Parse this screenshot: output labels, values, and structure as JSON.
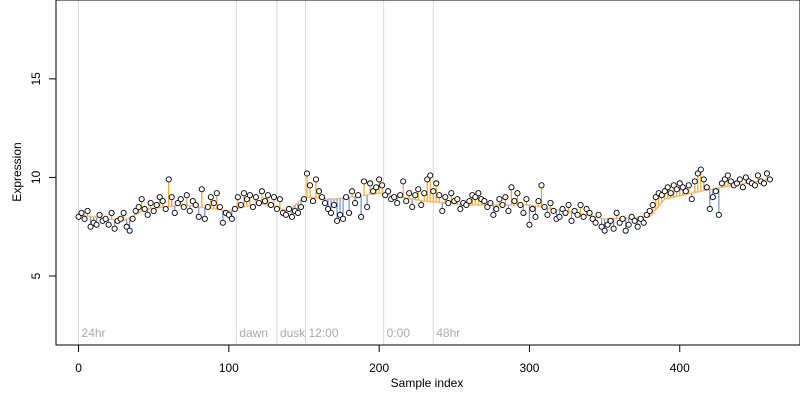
{
  "chart_data": {
    "type": "scatter",
    "title": "",
    "xlabel": "Sample index",
    "ylabel": "Expression",
    "xlim": [
      -15,
      480
    ],
    "ylim": [
      1.5,
      19
    ],
    "x_ticks": [
      0,
      100,
      200,
      300,
      400
    ],
    "y_ticks": [
      5,
      10,
      15
    ],
    "grid": false,
    "legend": "none",
    "colors": {
      "marker_fill": "#ffffff",
      "marker_stroke": "#000000",
      "residual_above": "#f5a623",
      "residual_below": "#6f8fd8",
      "fit_line": "#e8a85a",
      "annotation_line": "#d9d9d9",
      "annotation_text": "#aaaaaa"
    },
    "annotations": [
      {
        "x": 0,
        "label": "24hr"
      },
      {
        "x": 105,
        "label": "dawn"
      },
      {
        "x": 132,
        "label": "dusk"
      },
      {
        "x": 151,
        "label": "12:00"
      },
      {
        "x": 203,
        "label": "0:00"
      },
      {
        "x": 236,
        "label": "48hr"
      }
    ],
    "fit": {
      "x": [
        0,
        30,
        45,
        70,
        100,
        120,
        140,
        150,
        170,
        200,
        230,
        260,
        300,
        330,
        350,
        380,
        390,
        420,
        460
      ],
      "y": [
        8.1,
        7.8,
        8.4,
        8.6,
        8.3,
        8.7,
        8.3,
        9.0,
        8.9,
        9.2,
        8.8,
        8.6,
        8.6,
        8.2,
        7.9,
        8.0,
        8.9,
        9.4,
        9.9
      ]
    },
    "points": {
      "x": [
        0,
        2,
        4,
        6,
        8,
        10,
        12,
        14,
        16,
        18,
        20,
        22,
        24,
        26,
        28,
        30,
        32,
        34,
        36,
        38,
        40,
        42,
        44,
        46,
        48,
        50,
        52,
        54,
        56,
        58,
        60,
        62,
        64,
        66,
        68,
        70,
        72,
        74,
        76,
        78,
        80,
        82,
        84,
        86,
        88,
        90,
        92,
        94,
        96,
        98,
        100,
        102,
        104,
        106,
        108,
        110,
        112,
        114,
        116,
        118,
        120,
        122,
        124,
        126,
        128,
        130,
        132,
        134,
        136,
        138,
        140,
        142,
        144,
        146,
        148,
        150,
        152,
        154,
        156,
        158,
        160,
        162,
        164,
        166,
        168,
        170,
        172,
        174,
        176,
        178,
        180,
        182,
        184,
        186,
        188,
        190,
        192,
        194,
        196,
        198,
        200,
        202,
        204,
        206,
        208,
        210,
        212,
        214,
        216,
        218,
        220,
        222,
        224,
        226,
        228,
        230,
        232,
        234,
        236,
        238,
        240,
        242,
        244,
        246,
        248,
        250,
        252,
        254,
        256,
        258,
        260,
        262,
        264,
        266,
        268,
        270,
        272,
        274,
        276,
        278,
        280,
        282,
        284,
        286,
        288,
        290,
        292,
        294,
        296,
        298,
        300,
        302,
        304,
        306,
        308,
        310,
        312,
        314,
        316,
        318,
        320,
        322,
        324,
        326,
        328,
        330,
        332,
        334,
        336,
        338,
        340,
        342,
        344,
        346,
        348,
        350,
        352,
        354,
        356,
        358,
        360,
        362,
        364,
        366,
        368,
        370,
        372,
        374,
        376,
        378,
        380,
        382,
        384,
        386,
        388,
        390,
        392,
        394,
        396,
        398,
        400,
        402,
        404,
        406,
        408,
        410,
        412,
        414,
        416,
        418,
        420,
        422,
        424,
        426,
        428,
        430,
        432,
        434,
        436,
        438,
        440,
        442,
        444,
        446,
        448,
        450,
        452,
        454,
        456,
        458,
        460
      ],
      "y": [
        8.0,
        8.2,
        7.9,
        8.3,
        7.5,
        7.7,
        7.6,
        8.1,
        7.8,
        7.9,
        7.6,
        8.2,
        7.4,
        7.8,
        7.9,
        8.2,
        7.5,
        7.3,
        7.9,
        8.3,
        8.5,
        8.9,
        8.4,
        8.1,
        8.7,
        8.3,
        8.6,
        9.0,
        8.8,
        8.4,
        9.9,
        9.0,
        8.2,
        8.7,
        8.9,
        8.5,
        9.1,
        8.3,
        8.8,
        8.6,
        8.0,
        9.4,
        7.9,
        8.5,
        9.0,
        8.7,
        9.2,
        8.5,
        7.7,
        8.2,
        8.1,
        7.9,
        8.4,
        9.0,
        8.6,
        9.2,
        8.9,
        9.1,
        8.5,
        9.0,
        8.7,
        9.3,
        8.8,
        9.1,
        8.6,
        9.0,
        8.4,
        8.9,
        8.2,
        8.1,
        8.4,
        8.0,
        8.3,
        8.2,
        8.5,
        8.9,
        10.2,
        9.6,
        8.8,
        9.9,
        9.3,
        9.0,
        8.7,
        8.4,
        8.2,
        8.6,
        7.8,
        8.1,
        7.9,
        9.0,
        8.2,
        9.3,
        8.7,
        9.1,
        8.0,
        9.8,
        8.5,
        9.7,
        9.3,
        9.5,
        9.9,
        9.6,
        9.1,
        9.3,
        8.9,
        9.0,
        8.7,
        9.1,
        9.8,
        8.8,
        9.2,
        8.5,
        9.1,
        9.4,
        8.6,
        9.2,
        9.9,
        10.1,
        9.3,
        9.7,
        9.1,
        8.3,
        9.0,
        8.7,
        9.2,
        8.8,
        8.9,
        8.4,
        8.7,
        8.6,
        8.8,
        9.1,
        9.0,
        9.2,
        8.9,
        8.8,
        8.5,
        8.7,
        8.1,
        8.4,
        8.9,
        8.6,
        9.0,
        8.3,
        9.5,
        8.8,
        9.2,
        8.6,
        8.2,
        8.9,
        7.6,
        8.4,
        8.0,
        8.8,
        9.6,
        8.5,
        8.1,
        8.7,
        8.3,
        7.9,
        8.0,
        8.4,
        8.2,
        8.6,
        7.8,
        8.3,
        8.1,
        8.6,
        8.0,
        8.4,
        8.2,
        7.9,
        7.7,
        8.1,
        7.5,
        7.3,
        7.6,
        7.8,
        7.4,
        8.2,
        7.7,
        7.9,
        7.3,
        7.6,
        8.0,
        7.8,
        7.5,
        7.9,
        7.7,
        8.1,
        8.3,
        8.6,
        9.0,
        9.2,
        9.1,
        9.3,
        9.5,
        9.2,
        9.6,
        9.4,
        9.7,
        9.5,
        9.3,
        9.6,
        8.9,
        9.8,
        10.2,
        10.4,
        9.9,
        9.5,
        8.4,
        9.0,
        9.3,
        8.1,
        9.7,
        9.9,
        10.1,
        9.8,
        9.6,
        9.7,
        9.9,
        9.5,
        10.0,
        9.8,
        9.7,
        9.6,
        10.1,
        9.8,
        9.7,
        10.2,
        9.9
      ]
    }
  }
}
